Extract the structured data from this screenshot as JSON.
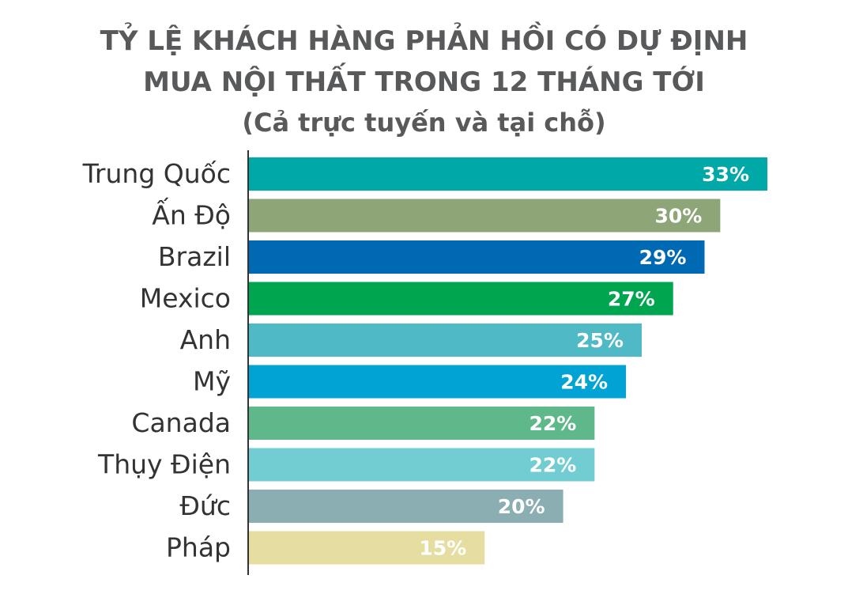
{
  "chart_data": {
    "type": "bar",
    "orientation": "horizontal",
    "title_lines": [
      "TỶ LỆ KHÁCH HÀNG PHẢN HỒI CÓ DỰ ĐỊNH",
      "MUA NỘI THẤT TRONG 12 THÁNG TỚI",
      "(Cả trực tuyến và tại chỗ)"
    ],
    "categories": [
      "Trung Quốc",
      "Ấn Độ",
      "Brazil",
      "Mexico",
      "Anh",
      "Mỹ",
      "Canada",
      "Thụy Điện",
      "Đức",
      "Pháp"
    ],
    "values": [
      33,
      30,
      29,
      27,
      25,
      24,
      22,
      22,
      20,
      15
    ],
    "value_labels": [
      "33%",
      "30%",
      "29%",
      "27%",
      "25%",
      "24%",
      "22%",
      "22%",
      "20%",
      "15%"
    ],
    "colors": [
      "#00a9a7",
      "#8ea677",
      "#0069b4",
      "#00a550",
      "#4fbac6",
      "#00a3d4",
      "#5fb88a",
      "#72cdd2",
      "#8aaeb1",
      "#e5dea0"
    ],
    "xlim": [
      0,
      33
    ],
    "grid": false,
    "legend": "none"
  }
}
